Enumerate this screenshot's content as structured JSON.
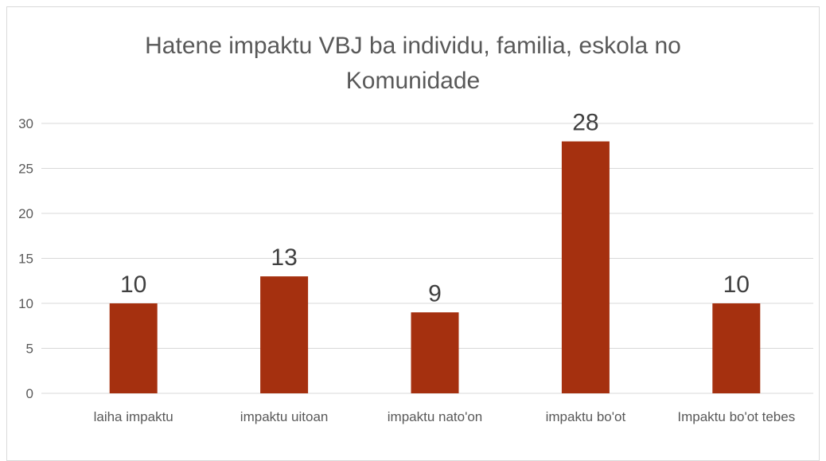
{
  "chart_data": {
    "type": "bar",
    "title": "Hatene impaktu VBJ ba individu, familia, eskola no Komunidade",
    "categories": [
      "laiha impaktu",
      "impaktu uitoan",
      "impaktu nato'on",
      "impaktu bo'ot",
      "Impaktu bo'ot tebes"
    ],
    "values": [
      10,
      13,
      9,
      28,
      10
    ],
    "color": "#a5300f",
    "ylim": [
      0,
      30
    ],
    "yticks": [
      0,
      5,
      10,
      15,
      20,
      25,
      30
    ],
    "grid": true
  }
}
